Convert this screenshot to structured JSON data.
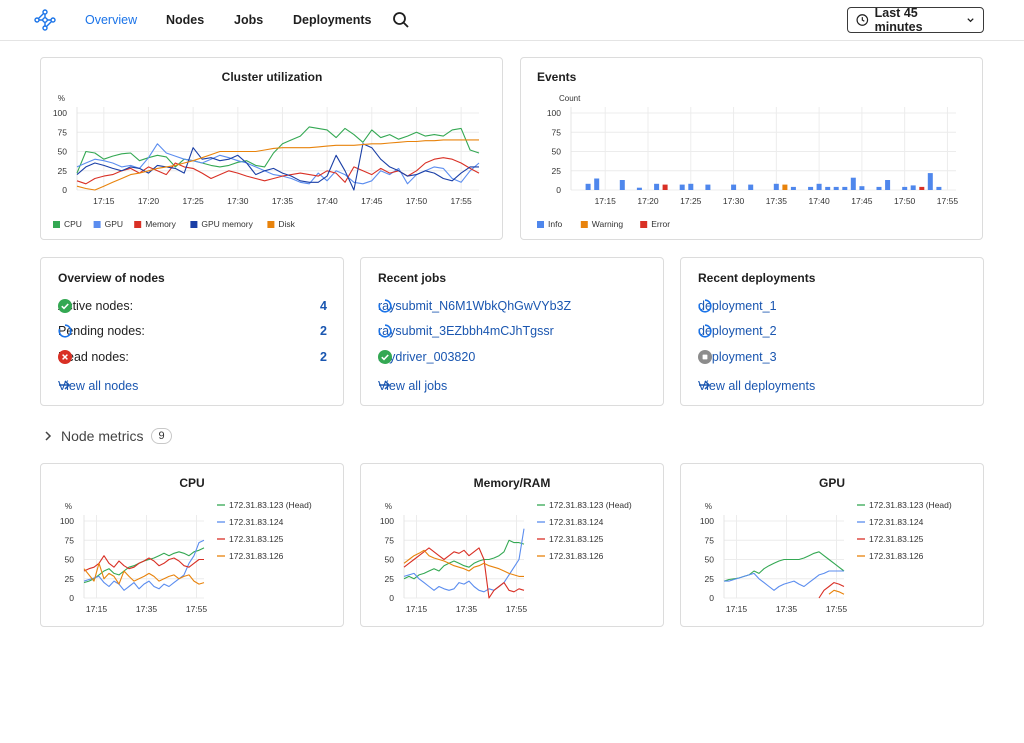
{
  "nav": {
    "items": [
      "Overview",
      "Nodes",
      "Jobs",
      "Deployments"
    ],
    "active": "Overview",
    "time_range": "Last 45 minutes"
  },
  "colors": {
    "accent": "#1a73e8",
    "link": "#1a56b0",
    "cpu": "#34a853",
    "gpu": "#5b8def",
    "memory": "#d93025",
    "gpu_memory": "#1a3fa6",
    "disk": "#e8830c",
    "info": "#4f87ec",
    "warning": "#e8830c",
    "error": "#d93025",
    "ok": "#34a853"
  },
  "utilization": {
    "title": "Cluster utilization",
    "unit": "%",
    "legend": [
      "CPU",
      "GPU",
      "Memory",
      "GPU memory",
      "Disk"
    ]
  },
  "events": {
    "title": "Events",
    "unit": "Count",
    "legend": [
      "Info",
      "Warning",
      "Error"
    ]
  },
  "nodes_overview": {
    "title": "Overview of nodes",
    "rows": [
      {
        "label": "Active nodes:",
        "count": "4",
        "status": "ok"
      },
      {
        "label": "Pending nodes:",
        "count": "2",
        "status": "pending"
      },
      {
        "label": "Dead nodes:",
        "count": "2",
        "status": "dead"
      }
    ],
    "view_all": "View all nodes"
  },
  "recent_jobs": {
    "title": "Recent jobs",
    "items": [
      {
        "label": "raysubmit_N6M1WbkQhGwVYb3Z",
        "status": "pending"
      },
      {
        "label": "raysubmit_3EZbbh4mCJhTgssr",
        "status": "pending"
      },
      {
        "label": "raydriver_003820",
        "status": "ok"
      }
    ],
    "view_all": "View all jobs"
  },
  "recent_deployments": {
    "title": "Recent deployments",
    "items": [
      {
        "label": "deployment_1",
        "status": "pending"
      },
      {
        "label": "deployment_2",
        "status": "pending"
      },
      {
        "label": "deployment_3",
        "status": "stopped"
      }
    ],
    "view_all": "View all deployments"
  },
  "node_metrics": {
    "label": "Node metrics",
    "count": "9",
    "series_names": [
      "172.31.83.123 (Head)",
      "172.31.83.124",
      "172.31.83.125",
      "172.31.83.126"
    ]
  },
  "chart_data": [
    {
      "type": "line",
      "title": "Cluster utilization",
      "ylabel": "%",
      "ylim": [
        0,
        100
      ],
      "yticks": [
        0,
        25,
        50,
        75,
        100
      ],
      "x": [
        "17:12",
        "17:13",
        "17:14",
        "17:15",
        "17:16",
        "17:17",
        "17:18",
        "17:19",
        "17:20",
        "17:21",
        "17:22",
        "17:23",
        "17:24",
        "17:25",
        "17:26",
        "17:27",
        "17:28",
        "17:29",
        "17:30",
        "17:31",
        "17:32",
        "17:33",
        "17:34",
        "17:35",
        "17:36",
        "17:37",
        "17:38",
        "17:39",
        "17:40",
        "17:41",
        "17:42",
        "17:43",
        "17:44",
        "17:45",
        "17:46",
        "17:47",
        "17:48",
        "17:49",
        "17:50",
        "17:51",
        "17:52",
        "17:53",
        "17:54",
        "17:55",
        "17:56",
        "17:57"
      ],
      "xticks": [
        "17:15",
        "17:20",
        "17:25",
        "17:30",
        "17:35",
        "17:40",
        "17:45",
        "17:50",
        "17:55"
      ],
      "legend_position": "bottom-left",
      "grid": true,
      "series": [
        {
          "name": "CPU",
          "color": "#34a853",
          "values": [
            22,
            50,
            48,
            40,
            44,
            47,
            48,
            38,
            42,
            45,
            43,
            30,
            40,
            38,
            35,
            32,
            30,
            32,
            36,
            38,
            32,
            30,
            48,
            60,
            65,
            70,
            82,
            80,
            78,
            68,
            80,
            72,
            62,
            78,
            68,
            72,
            66,
            70,
            75,
            70,
            72,
            70,
            78,
            80,
            52,
            48
          ]
        },
        {
          "name": "GPU",
          "color": "#5b8def",
          "values": [
            30,
            35,
            40,
            38,
            35,
            30,
            32,
            28,
            42,
            60,
            48,
            44,
            40,
            38,
            35,
            40,
            45,
            42,
            38,
            35,
            30,
            25,
            20,
            18,
            15,
            10,
            8,
            22,
            12,
            25,
            20,
            10,
            8,
            12,
            25,
            20,
            28,
            8,
            20,
            25,
            30,
            28,
            15,
            10,
            25,
            35
          ]
        },
        {
          "name": "Memory",
          "color": "#d93025",
          "values": [
            12,
            8,
            15,
            18,
            20,
            25,
            28,
            22,
            30,
            25,
            20,
            35,
            30,
            28,
            22,
            15,
            20,
            25,
            22,
            18,
            15,
            12,
            15,
            18,
            20,
            22,
            20,
            18,
            25,
            22,
            10,
            30,
            25,
            20,
            28,
            22,
            25,
            18,
            25,
            35,
            40,
            42,
            40,
            35,
            28,
            22
          ]
        },
        {
          "name": "GPU memory",
          "color": "#1a3fa6",
          "values": [
            20,
            30,
            35,
            32,
            28,
            25,
            30,
            28,
            22,
            32,
            30,
            28,
            22,
            55,
            40,
            42,
            38,
            40,
            45,
            35,
            20,
            25,
            28,
            22,
            18,
            12,
            10,
            10,
            18,
            45,
            25,
            0,
            60,
            55,
            40,
            30,
            25,
            18,
            20,
            25,
            22,
            15,
            12,
            22,
            30,
            30
          ]
        },
        {
          "name": "Disk",
          "color": "#e8830c",
          "values": [
            5,
            2,
            0,
            5,
            10,
            15,
            20,
            22,
            25,
            28,
            30,
            32,
            35,
            38,
            42,
            46,
            50,
            50,
            50,
            50,
            50,
            52,
            54,
            55,
            55,
            55,
            55,
            56,
            57,
            58,
            58,
            58,
            59,
            60,
            60,
            61,
            62,
            63,
            63,
            64,
            64,
            65,
            65,
            65,
            65,
            65
          ]
        }
      ]
    },
    {
      "type": "bar",
      "title": "Events",
      "ylabel": "Count",
      "ylim": [
        0,
        100
      ],
      "yticks": [
        0,
        25,
        50,
        75,
        100
      ],
      "xticks": [
        "17:15",
        "17:20",
        "17:25",
        "17:30",
        "17:35",
        "17:40",
        "17:45",
        "17:50",
        "17:55"
      ],
      "legend_position": "bottom-left",
      "grid": true,
      "series": [
        {
          "name": "Info",
          "color": "#4f87ec",
          "points": [
            [
              "17:13",
              8
            ],
            [
              "17:14",
              15
            ],
            [
              "17:17",
              13
            ],
            [
              "17:19",
              3
            ],
            [
              "17:21",
              8
            ],
            [
              "17:24",
              7
            ],
            [
              "17:25",
              8
            ],
            [
              "17:27",
              7
            ],
            [
              "17:30",
              7
            ],
            [
              "17:32",
              7
            ],
            [
              "17:35",
              8
            ],
            [
              "17:37",
              4
            ],
            [
              "17:39",
              4
            ],
            [
              "17:40",
              8
            ],
            [
              "17:41",
              4
            ],
            [
              "17:42",
              4
            ],
            [
              "17:43",
              4
            ],
            [
              "17:44",
              16
            ],
            [
              "17:45",
              5
            ],
            [
              "17:47",
              4
            ],
            [
              "17:48",
              13
            ],
            [
              "17:50",
              4
            ],
            [
              "17:51",
              6
            ],
            [
              "17:53",
              22
            ],
            [
              "17:54",
              4
            ]
          ]
        },
        {
          "name": "Warning",
          "color": "#e8830c",
          "points": [
            [
              "17:36",
              7
            ]
          ]
        },
        {
          "name": "Error",
          "color": "#d93025",
          "points": [
            [
              "17:22",
              7
            ],
            [
              "17:52",
              4
            ]
          ]
        }
      ]
    },
    {
      "type": "line",
      "title": "CPU",
      "ylabel": "%",
      "ylim": [
        0,
        100
      ],
      "yticks": [
        0,
        25,
        50,
        75,
        100
      ],
      "x": [
        "17:10",
        "17:12",
        "17:14",
        "17:16",
        "17:18",
        "17:20",
        "17:22",
        "17:24",
        "17:26",
        "17:28",
        "17:30",
        "17:32",
        "17:34",
        "17:36",
        "17:38",
        "17:40",
        "17:42",
        "17:44",
        "17:46",
        "17:48",
        "17:50",
        "17:52",
        "17:54",
        "17:56",
        "17:58"
      ],
      "xticks": [
        "17:15",
        "17:35",
        "17:55"
      ],
      "legend_position": "right",
      "grid": true,
      "series": [
        {
          "name": "172.31.83.123 (Head)",
          "color": "#34a853",
          "values": [
            20,
            22,
            25,
            30,
            35,
            38,
            32,
            30,
            35,
            40,
            42,
            45,
            48,
            50,
            52,
            55,
            58,
            55,
            58,
            60,
            58,
            55,
            60,
            62,
            65
          ]
        },
        {
          "name": "172.31.83.124",
          "color": "#5b8def",
          "values": [
            22,
            24,
            26,
            28,
            20,
            15,
            22,
            18,
            10,
            15,
            20,
            12,
            18,
            22,
            15,
            12,
            18,
            15,
            20,
            25,
            30,
            45,
            55,
            72,
            75
          ]
        },
        {
          "name": "172.31.83.125",
          "color": "#d93025",
          "values": [
            35,
            38,
            40,
            45,
            55,
            45,
            40,
            48,
            42,
            38,
            40,
            45,
            48,
            52,
            48,
            42,
            45,
            50,
            52,
            48,
            42,
            40,
            45,
            50,
            50
          ]
        },
        {
          "name": "172.31.83.126",
          "color": "#e8830c",
          "values": [
            38,
            30,
            22,
            45,
            25,
            32,
            28,
            18,
            35,
            28,
            22,
            25,
            28,
            32,
            28,
            22,
            25,
            28,
            30,
            25,
            28,
            30,
            22,
            18,
            20
          ]
        }
      ]
    },
    {
      "type": "line",
      "title": "Memory/RAM",
      "ylabel": "%",
      "ylim": [
        0,
        100
      ],
      "yticks": [
        0,
        25,
        50,
        75,
        100
      ],
      "x": [
        "17:10",
        "17:12",
        "17:14",
        "17:16",
        "17:18",
        "17:20",
        "17:22",
        "17:24",
        "17:26",
        "17:28",
        "17:30",
        "17:32",
        "17:34",
        "17:36",
        "17:38",
        "17:40",
        "17:42",
        "17:44",
        "17:46",
        "17:48",
        "17:50",
        "17:52",
        "17:54",
        "17:56",
        "17:58"
      ],
      "xticks": [
        "17:15",
        "17:35",
        "17:55"
      ],
      "legend_position": "right",
      "grid": true,
      "series": [
        {
          "name": "172.31.83.123 (Head)",
          "color": "#34a853",
          "values": [
            25,
            28,
            25,
            30,
            32,
            35,
            38,
            35,
            42,
            45,
            48,
            45,
            42,
            40,
            45,
            48,
            50,
            50,
            52,
            55,
            60,
            75,
            72,
            72,
            70
          ]
        },
        {
          "name": "172.31.83.124",
          "color": "#5b8def",
          "values": [
            28,
            30,
            32,
            25,
            20,
            15,
            10,
            15,
            12,
            10,
            12,
            20,
            18,
            22,
            15,
            10,
            8,
            12,
            10,
            15,
            20,
            30,
            40,
            50,
            90
          ]
        },
        {
          "name": "172.31.83.125",
          "color": "#d93025",
          "values": [
            40,
            45,
            50,
            55,
            60,
            65,
            60,
            55,
            50,
            55,
            60,
            58,
            62,
            55,
            60,
            65,
            50,
            0,
            10,
            15,
            20,
            10,
            8,
            12,
            10
          ]
        },
        {
          "name": "172.31.83.126",
          "color": "#e8830c",
          "values": [
            45,
            50,
            55,
            58,
            62,
            55,
            52,
            50,
            48,
            45,
            42,
            40,
            38,
            35,
            40,
            42,
            45,
            42,
            40,
            38,
            35,
            32,
            30,
            28,
            28
          ]
        }
      ]
    },
    {
      "type": "line",
      "title": "GPU",
      "ylabel": "%",
      "ylim": [
        0,
        100
      ],
      "yticks": [
        0,
        25,
        50,
        75,
        100
      ],
      "x": [
        "17:10",
        "17:12",
        "17:14",
        "17:16",
        "17:18",
        "17:20",
        "17:22",
        "17:24",
        "17:26",
        "17:28",
        "17:30",
        "17:32",
        "17:34",
        "17:36",
        "17:38",
        "17:40",
        "17:42",
        "17:44",
        "17:46",
        "17:48",
        "17:50",
        "17:52",
        "17:54",
        "17:56",
        "17:58"
      ],
      "xticks": [
        "17:15",
        "17:35",
        "17:55"
      ],
      "legend_position": "right",
      "grid": true,
      "series": [
        {
          "name": "172.31.83.123 (Head)",
          "color": "#34a853",
          "values": [
            22,
            24,
            25,
            26,
            28,
            30,
            35,
            32,
            38,
            42,
            45,
            48,
            50,
            50,
            50,
            50,
            52,
            55,
            58,
            60,
            55,
            50,
            45,
            40,
            35
          ]
        },
        {
          "name": "172.31.83.124",
          "color": "#5b8def",
          "values": [
            22,
            22,
            24,
            26,
            28,
            30,
            32,
            25,
            20,
            15,
            10,
            15,
            18,
            20,
            22,
            18,
            15,
            20,
            25,
            30,
            32,
            35,
            35,
            35,
            35
          ]
        },
        {
          "name": "172.31.83.125",
          "color": "#d93025",
          "values": [
            null,
            null,
            null,
            null,
            null,
            null,
            null,
            null,
            null,
            null,
            null,
            null,
            null,
            null,
            null,
            null,
            null,
            null,
            null,
            0,
            10,
            15,
            20,
            18,
            15
          ]
        },
        {
          "name": "172.31.83.126",
          "color": "#e8830c",
          "values": [
            null,
            null,
            null,
            null,
            null,
            null,
            null,
            null,
            null,
            null,
            null,
            null,
            null,
            null,
            null,
            null,
            null,
            null,
            null,
            null,
            null,
            5,
            10,
            8,
            5
          ]
        }
      ]
    }
  ]
}
